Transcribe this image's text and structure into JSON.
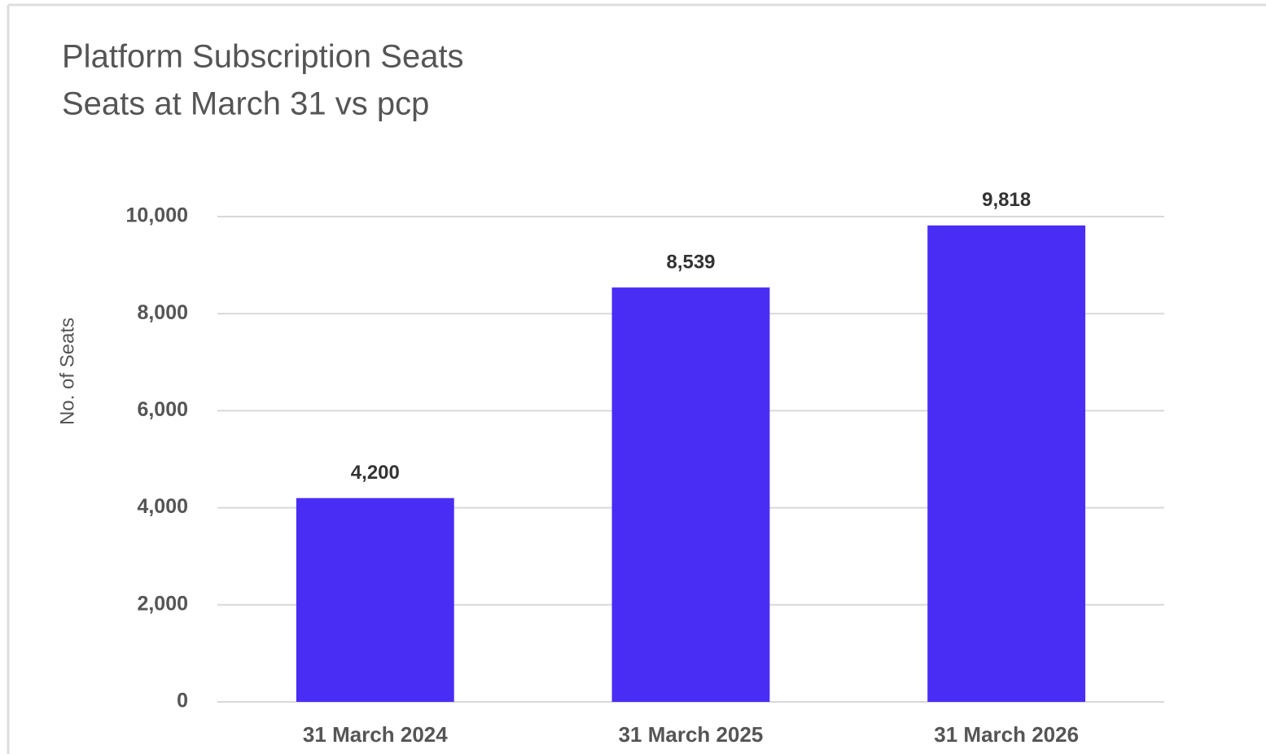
{
  "chart_data": {
    "type": "bar",
    "title": "Platform Subscription Seats",
    "subtitle": "Seats at March 31 vs pcp",
    "y_label": "No. of Seats",
    "categories": [
      "31 March 2024",
      "31 March 2025",
      "31 March 2026"
    ],
    "values": [
      4200,
      8539,
      9818
    ],
    "value_labels": [
      "4,200",
      "8,539",
      "9,818"
    ],
    "color": "#4a2df5",
    "ylim": [
      0,
      10000
    ],
    "yticks": [
      0,
      {
        "value": 2000,
        "label": "2,000"
      },
      {
        "value": 4000,
        "label": "4,000"
      },
      {
        "value": 6000,
        "label": "6,000"
      },
      {
        "value": 8000,
        "label": "8,000"
      },
      {
        "value": 10000,
        "label": "10,000"
      }
    ],
    "grid": true
  }
}
